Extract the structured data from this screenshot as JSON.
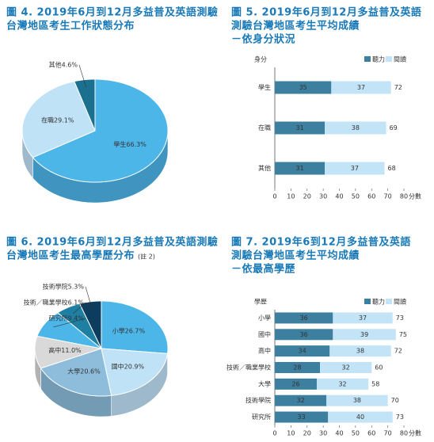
{
  "chart_data": [
    {
      "type": "pie",
      "title": [
        "圖 4. 2019年6月到12月多益普及英語測驗",
        "台灣地區考生工作狀態分布"
      ],
      "values": [
        66.3,
        29.1,
        4.6
      ],
      "value_labels": [
        "學生66.3%",
        "在職29.1%",
        "其他4.6%"
      ],
      "colors": [
        "#4db6e9",
        "#bfe2f7",
        "#1b6f8f"
      ]
    },
    {
      "type": "bar",
      "title": [
        "圖 5. 2019年6月到12月多益普及英語",
        "測驗台灣地區考生平均成績",
        "－依身分狀況"
      ],
      "y_label": "身分",
      "x_label": "分數",
      "categories": [
        "學生",
        "在職",
        "其他"
      ],
      "series": [
        {
          "name": "聽力",
          "color": "#3d7f9e",
          "values": [
            35,
            31,
            31
          ]
        },
        {
          "name": "閱讀",
          "color": "#c2e4f6",
          "values": [
            37,
            38,
            37
          ]
        }
      ],
      "totals": [
        72,
        69,
        68
      ],
      "xlim": [
        0,
        80
      ],
      "xticks": [
        0,
        10,
        20,
        30,
        40,
        50,
        60,
        70,
        80
      ]
    },
    {
      "type": "pie",
      "title": [
        "圖 6. 2019年6月到12月多益普及英語測驗",
        "台灣地區考生最高學歷分布"
      ],
      "note": "(註 2)",
      "values": [
        26.7,
        20.9,
        20.6,
        11.0,
        9.4,
        6.1,
        5.3
      ],
      "value_labels": [
        "小學26.7%",
        "國中20.9%",
        "大學20.6%",
        "高中11.0%",
        "研究所9.4%",
        "技術／職業學校6.1%",
        "技術學院5.3%"
      ],
      "colors": [
        "#4db6e9",
        "#bfe2f7",
        "#8dbddb",
        "#d9d9d9",
        "#4db6e9",
        "#1e7fa3",
        "#0c3d5e"
      ]
    },
    {
      "type": "bar",
      "title": [
        "圖 7. 2019年6到12月多益普及英語",
        "測驗台灣地區考生平均成績",
        "－依最高學歷"
      ],
      "y_label": "學歷",
      "x_label": "分數",
      "categories": [
        "小學",
        "國中",
        "高中",
        "技術／職業學校",
        "大學",
        "技術學院",
        "研究所"
      ],
      "series": [
        {
          "name": "聽力",
          "color": "#3d7f9e",
          "values": [
            36,
            36,
            34,
            28,
            26,
            32,
            33
          ]
        },
        {
          "name": "閱讀",
          "color": "#c2e4f6",
          "values": [
            37,
            39,
            38,
            32,
            32,
            38,
            40
          ]
        }
      ],
      "totals": [
        73,
        75,
        72,
        60,
        58,
        70,
        73
      ],
      "xlim": [
        0,
        80
      ],
      "xticks": [
        0,
        10,
        20,
        30,
        40,
        50,
        60,
        70,
        80
      ]
    }
  ]
}
